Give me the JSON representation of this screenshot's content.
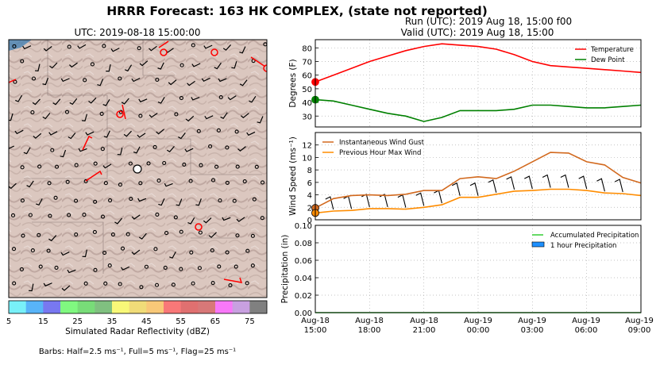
{
  "figure": {
    "title": "HRRR Forecast: 163 HK COMPLEX, (state not reported)",
    "run_line": "Run (UTC): 2019 Aug 18, 15:00 f00",
    "valid_line": "Valid (UTC): 2019 Aug 18, 15:00"
  },
  "map": {
    "title": "UTC: 2019-08-18 15:00:00",
    "colorbar_label": "Simulated Radar Reflectivity (dBZ)",
    "colorbar_ticks": [
      "5",
      "15",
      "25",
      "35",
      "45",
      "55",
      "65",
      "75"
    ],
    "colorbar_colors": [
      "#78f0f8",
      "#58b4f8",
      "#7878f0",
      "#80f880",
      "#78dc78",
      "#80c080",
      "#f8f878",
      "#f0dc78",
      "#f8c878",
      "#f87878",
      "#e07070",
      "#d87878",
      "#f878f8",
      "#c8a0e0",
      "#808080"
    ],
    "barbs_caption": "Barbs: Half=2.5 ms⁻¹, Full=5 ms⁻¹, Flag=25 ms⁻¹"
  },
  "chart_data": [
    {
      "type": "line",
      "ylabel": "Degrees (F)",
      "ylim": [
        22,
        86
      ],
      "yticks": [
        "30",
        "40",
        "50",
        "60",
        "70",
        "80"
      ],
      "grid": true,
      "legend_position": "top-right",
      "x": [
        "2019-08-18 15:00",
        "2019-08-18 16:00",
        "2019-08-18 17:00",
        "2019-08-18 18:00",
        "2019-08-18 19:00",
        "2019-08-18 20:00",
        "2019-08-18 21:00",
        "2019-08-18 22:00",
        "2019-08-18 23:00",
        "2019-08-19 00:00",
        "2019-08-19 01:00",
        "2019-08-19 02:00",
        "2019-08-19 03:00",
        "2019-08-19 04:00",
        "2019-08-19 05:00",
        "2019-08-19 06:00",
        "2019-08-19 07:00",
        "2019-08-19 08:00",
        "2019-08-19 09:00"
      ],
      "series": [
        {
          "name": "Temperature",
          "color": "#ff0000",
          "values": [
            55,
            60,
            65,
            70,
            74,
            78,
            81,
            83,
            82,
            81,
            79,
            75,
            70,
            67,
            66,
            65,
            64,
            63,
            62
          ]
        },
        {
          "name": "Dew Point",
          "color": "#008000",
          "values": [
            42,
            41,
            38,
            35,
            32,
            30,
            26,
            29,
            34,
            34,
            34,
            35,
            38,
            38,
            37,
            36,
            36,
            37,
            38
          ]
        }
      ]
    },
    {
      "type": "line",
      "ylabel": "Wind Speed (ms⁻¹)",
      "ylim": [
        0,
        14
      ],
      "yticks": [
        "0",
        "2",
        "4",
        "6",
        "8",
        "10",
        "12"
      ],
      "grid": true,
      "legend_position": "top-left",
      "x": [
        "2019-08-18 15:00",
        "2019-08-18 16:00",
        "2019-08-18 17:00",
        "2019-08-18 18:00",
        "2019-08-18 19:00",
        "2019-08-18 20:00",
        "2019-08-18 21:00",
        "2019-08-18 22:00",
        "2019-08-18 23:00",
        "2019-08-19 00:00",
        "2019-08-19 01:00",
        "2019-08-19 02:00",
        "2019-08-19 03:00",
        "2019-08-19 04:00",
        "2019-08-19 05:00",
        "2019-08-19 06:00",
        "2019-08-19 07:00",
        "2019-08-19 08:00",
        "2019-08-19 09:00"
      ],
      "series": [
        {
          "name": "Instantaneous Wind Gust",
          "color": "#d2691e",
          "values": [
            1.9,
            3.4,
            3.9,
            4.0,
            3.9,
            4.1,
            4.7,
            4.7,
            6.6,
            6.9,
            6.6,
            7.8,
            9.3,
            10.8,
            10.7,
            9.3,
            8.8,
            6.8,
            5.9
          ]
        },
        {
          "name": "Previous Hour Max Wind",
          "color": "#ff8c00",
          "values": [
            1.1,
            1.4,
            1.5,
            1.8,
            1.8,
            1.7,
            2.0,
            2.4,
            3.6,
            3.6,
            4.1,
            4.6,
            4.7,
            4.9,
            4.9,
            4.7,
            4.3,
            4.2,
            3.9
          ]
        }
      ]
    },
    {
      "type": "line",
      "ylabel": "Precipitation (in)",
      "ylim": [
        0,
        0.1
      ],
      "yticks": [
        "0.00",
        "0.02",
        "0.04",
        "0.06",
        "0.08",
        "0.10"
      ],
      "grid": true,
      "legend_position": "top-right",
      "x": [
        "2019-08-18 15:00",
        "2019-08-18 16:00",
        "2019-08-18 17:00",
        "2019-08-18 18:00",
        "2019-08-18 19:00",
        "2019-08-18 20:00",
        "2019-08-18 21:00",
        "2019-08-18 22:00",
        "2019-08-18 23:00",
        "2019-08-19 00:00",
        "2019-08-19 01:00",
        "2019-08-19 02:00",
        "2019-08-19 03:00",
        "2019-08-19 04:00",
        "2019-08-19 05:00",
        "2019-08-19 06:00",
        "2019-08-19 07:00",
        "2019-08-19 08:00",
        "2019-08-19 09:00"
      ],
      "series": [
        {
          "name": "Accumulated Precipitation",
          "color": "#32cd32",
          "values": [
            0,
            0,
            0,
            0,
            0,
            0,
            0,
            0,
            0,
            0,
            0,
            0,
            0,
            0,
            0,
            0,
            0,
            0,
            0
          ]
        },
        {
          "name": "1 hour Precipitation",
          "color": "#1e90ff",
          "values": [
            0,
            0,
            0,
            0,
            0,
            0,
            0,
            0,
            0,
            0,
            0,
            0,
            0,
            0,
            0,
            0,
            0,
            0,
            0
          ]
        }
      ]
    }
  ],
  "time_axis": {
    "ticks": [
      {
        "day": "Aug-18",
        "time": "15:00"
      },
      {
        "day": "Aug-18",
        "time": "18:00"
      },
      {
        "day": "Aug-18",
        "time": "21:00"
      },
      {
        "day": "Aug-19",
        "time": "00:00"
      },
      {
        "day": "Aug-19",
        "time": "03:00"
      },
      {
        "day": "Aug-19",
        "time": "06:00"
      },
      {
        "day": "Aug-19",
        "time": "09:00"
      }
    ]
  }
}
